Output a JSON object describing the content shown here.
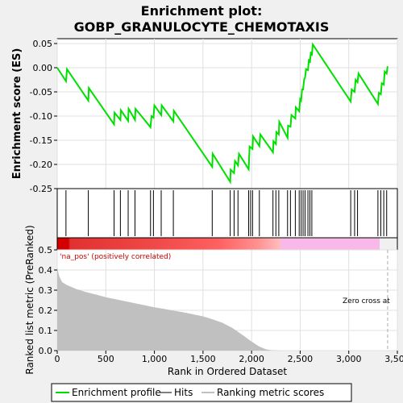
{
  "chart_data": {
    "type": "line",
    "title_line1": "Enrichment plot:",
    "title_line2": "GOBP_GRANULOCYTE_CHEMOTAXIS",
    "top_panel": {
      "ylabel": "Enrichment score (ES)",
      "ylim": [
        -0.25,
        0.06
      ],
      "yticks": [
        "0.05",
        "0.00",
        "-0.05",
        "-0.10",
        "-0.15",
        "-0.20",
        "-0.25"
      ],
      "ytick_values": [
        0.05,
        0.0,
        -0.05,
        -0.1,
        -0.15,
        -0.2,
        -0.25
      ],
      "line_color": "#00e000",
      "es_points": [
        [
          0,
          0.0
        ],
        [
          90,
          -0.028
        ],
        [
          100,
          -0.003
        ],
        [
          320,
          -0.068
        ],
        [
          325,
          -0.042
        ],
        [
          585,
          -0.117
        ],
        [
          590,
          -0.093
        ],
        [
          650,
          -0.108
        ],
        [
          655,
          -0.088
        ],
        [
          730,
          -0.11
        ],
        [
          735,
          -0.085
        ],
        [
          800,
          -0.108
        ],
        [
          805,
          -0.085
        ],
        [
          960,
          -0.123
        ],
        [
          970,
          -0.1
        ],
        [
          990,
          -0.103
        ],
        [
          1000,
          -0.078
        ],
        [
          1070,
          -0.098
        ],
        [
          1075,
          -0.078
        ],
        [
          1195,
          -0.111
        ],
        [
          1200,
          -0.089
        ],
        [
          1595,
          -0.205
        ],
        [
          1600,
          -0.178
        ],
        [
          1780,
          -0.236
        ],
        [
          1785,
          -0.211
        ],
        [
          1820,
          -0.218
        ],
        [
          1830,
          -0.193
        ],
        [
          1860,
          -0.202
        ],
        [
          1870,
          -0.178
        ],
        [
          1970,
          -0.21
        ],
        [
          1980,
          -0.163
        ],
        [
          2010,
          -0.168
        ],
        [
          2015,
          -0.142
        ],
        [
          2080,
          -0.162
        ],
        [
          2090,
          -0.138
        ],
        [
          2220,
          -0.175
        ],
        [
          2225,
          -0.152
        ],
        [
          2250,
          -0.158
        ],
        [
          2255,
          -0.133
        ],
        [
          2280,
          -0.138
        ],
        [
          2285,
          -0.112
        ],
        [
          2370,
          -0.145
        ],
        [
          2375,
          -0.12
        ],
        [
          2400,
          -0.122
        ],
        [
          2410,
          -0.098
        ],
        [
          2450,
          -0.105
        ],
        [
          2455,
          -0.082
        ],
        [
          2490,
          -0.09
        ],
        [
          2500,
          -0.065
        ],
        [
          2510,
          -0.068
        ],
        [
          2520,
          -0.045
        ],
        [
          2530,
          -0.045
        ],
        [
          2540,
          -0.025
        ],
        [
          2550,
          -0.02
        ],
        [
          2560,
          -0.003
        ],
        [
          2580,
          -0.005
        ],
        [
          2590,
          0.018
        ],
        [
          2600,
          0.01
        ],
        [
          2610,
          0.033
        ],
        [
          2620,
          0.025
        ],
        [
          2630,
          0.048
        ],
        [
          3020,
          -0.07
        ],
        [
          3030,
          -0.045
        ],
        [
          3060,
          -0.05
        ],
        [
          3070,
          -0.025
        ],
        [
          3090,
          -0.03
        ],
        [
          3100,
          -0.012
        ],
        [
          3300,
          -0.075
        ],
        [
          3310,
          -0.052
        ],
        [
          3330,
          -0.055
        ],
        [
          3340,
          -0.032
        ],
        [
          3360,
          -0.035
        ],
        [
          3370,
          -0.008
        ],
        [
          3390,
          -0.012
        ],
        [
          3400,
          0.003
        ]
      ]
    },
    "hits_panel": {
      "hit_positions": [
        90,
        320,
        585,
        650,
        730,
        800,
        960,
        990,
        1070,
        1195,
        1595,
        1780,
        1820,
        1860,
        1970,
        1990,
        2010,
        2080,
        2220,
        2250,
        2280,
        2370,
        2400,
        2450,
        2490,
        2510,
        2530,
        2550,
        2580,
        2600,
        2620,
        3020,
        3060,
        3090,
        3300,
        3330,
        3360,
        3390
      ]
    },
    "rank_panel": {
      "ylabel": "Ranked list metric (PreRanked)",
      "xlabel": "Rank in Ordered Dataset",
      "ylim": [
        0,
        0.5
      ],
      "yticks": [
        "0.0",
        "0.1",
        "0.2",
        "0.3",
        "0.4",
        "0.5"
      ],
      "ytick_values": [
        0.0,
        0.1,
        0.2,
        0.3,
        0.4,
        0.5
      ],
      "xlim": [
        0,
        3500
      ],
      "xticks": [
        "0",
        "500",
        "1,000",
        "1,500",
        "2,000",
        "2,500",
        "3,000",
        "3,500"
      ],
      "xtick_values": [
        0,
        500,
        1000,
        1500,
        2000,
        2500,
        3000,
        3500
      ],
      "fill_color": "#c0c0c0",
      "metric_points": [
        [
          0,
          0.41
        ],
        [
          20,
          0.37
        ],
        [
          50,
          0.34
        ],
        [
          100,
          0.325
        ],
        [
          200,
          0.305
        ],
        [
          300,
          0.29
        ],
        [
          400,
          0.278
        ],
        [
          500,
          0.265
        ],
        [
          600,
          0.255
        ],
        [
          700,
          0.245
        ],
        [
          800,
          0.235
        ],
        [
          900,
          0.225
        ],
        [
          1000,
          0.215
        ],
        [
          1100,
          0.207
        ],
        [
          1200,
          0.198
        ],
        [
          1300,
          0.19
        ],
        [
          1400,
          0.18
        ],
        [
          1500,
          0.17
        ],
        [
          1600,
          0.155
        ],
        [
          1700,
          0.138
        ],
        [
          1800,
          0.113
        ],
        [
          1900,
          0.08
        ],
        [
          2000,
          0.045
        ],
        [
          2080,
          0.02
        ],
        [
          2150,
          0.006
        ],
        [
          2200,
          0.002
        ],
        [
          2300,
          0.0
        ],
        [
          3400,
          0.0
        ]
      ],
      "label_positive": "'na_pos' (positively correlated)",
      "label_zero": "Zero cross at",
      "zero_cross_rank": 3400,
      "max_rank": 3400
    },
    "legend": {
      "items": [
        "Enrichment profile",
        "Hits",
        "Ranking metric scores"
      ],
      "colors": [
        "#00e000",
        "#000000",
        "#c0c0c0"
      ]
    }
  }
}
